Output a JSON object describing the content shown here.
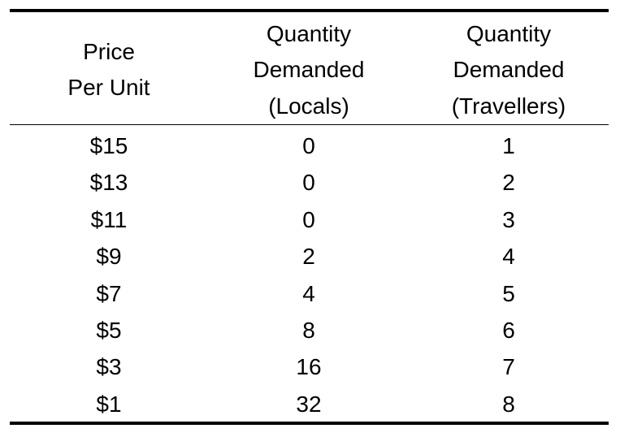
{
  "table": {
    "header": [
      [
        "Price",
        "Per Unit"
      ],
      [
        "Quantity",
        "Demanded",
        "(Locals)"
      ],
      [
        "Quantity",
        "Demanded",
        "(Travellers)"
      ]
    ],
    "rows": [
      [
        "$15",
        "0",
        "1"
      ],
      [
        "$13",
        "0",
        "2"
      ],
      [
        "$11",
        "0",
        "3"
      ],
      [
        "$9",
        "2",
        "4"
      ],
      [
        "$7",
        "4",
        "5"
      ],
      [
        "$5",
        "8",
        "6"
      ],
      [
        "$3",
        "16",
        "7"
      ],
      [
        "$1",
        "32",
        "8"
      ]
    ]
  }
}
